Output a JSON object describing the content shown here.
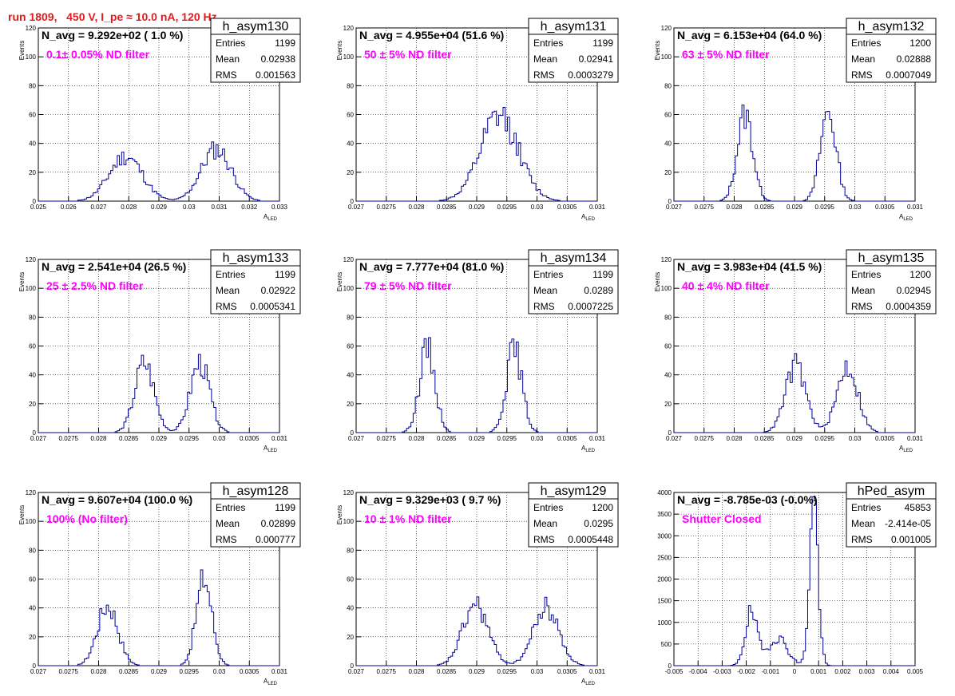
{
  "page_title": "run 1809,   450 V, I_pe ≈ 10.0 nA, 120 Hz",
  "chart_data": [
    {
      "type": "histogram",
      "name": "h_asym130",
      "n_avg_label": "N_avg = 9.292e+02 ( 1.0 %)",
      "filter_label": "0.1± 0.05% ND filter",
      "stats": [
        {
          "label": "Entries",
          "value": "1199"
        },
        {
          "label": "Mean",
          "value": "0.02938"
        },
        {
          "label": "RMS",
          "value": "0.001563"
        }
      ],
      "xlim": [
        0.025,
        0.033
      ],
      "ylim": [
        0,
        120
      ],
      "xticks": [
        0.025,
        0.026,
        0.027,
        0.028,
        0.029,
        0.03,
        0.031,
        0.032,
        0.033
      ],
      "xtick_labels": [
        "0.025",
        "0.026",
        "0.027",
        "0.028",
        "0.029",
        "0.03",
        "0.031",
        "0.032",
        "0.033"
      ],
      "yticks": [
        0,
        20,
        40,
        60,
        80,
        100,
        120
      ],
      "ytick_labels": [
        "0",
        "20",
        "40",
        "60",
        "80",
        "100",
        "120"
      ],
      "xlabel": "A",
      "xlabel_sub": "LED",
      "ylabel": "Events",
      "grid": true,
      "peaks": [
        {
          "center": 0.0279,
          "sigma": 0.00055,
          "height": 31
        },
        {
          "center": 0.0309,
          "sigma": 0.0005,
          "height": 36
        }
      ],
      "bins": 110,
      "seed": 11
    },
    {
      "type": "histogram",
      "name": "h_asym131",
      "n_avg_label": "N_avg = 4.955e+04 (51.6 %)",
      "filter_label": "50 ± 5% ND filter",
      "stats": [
        {
          "label": "Entries",
          "value": "1199"
        },
        {
          "label": "Mean",
          "value": "0.02941"
        },
        {
          "label": "RMS",
          "value": "0.0003279"
        }
      ],
      "xlim": [
        0.027,
        0.031
      ],
      "ylim": [
        0,
        120
      ],
      "xticks": [
        0.027,
        0.0275,
        0.028,
        0.0285,
        0.029,
        0.0295,
        0.03,
        0.0305,
        0.031
      ],
      "xtick_labels": [
        "0.027",
        "0.0275",
        "0.028",
        "0.0285",
        "0.029",
        "0.0295",
        "0.03",
        "0.0305",
        "0.031"
      ],
      "yticks": [
        0,
        20,
        40,
        60,
        80,
        100,
        120
      ],
      "ytick_labels": [
        "0",
        "20",
        "40",
        "60",
        "80",
        "100",
        "120"
      ],
      "xlabel": "A",
      "xlabel_sub": "LED",
      "ylabel": "Events",
      "grid": true,
      "peaks": [
        {
          "center": 0.02938,
          "sigma": 0.00032,
          "height": 58
        }
      ],
      "bins": 110,
      "seed": 12
    },
    {
      "type": "histogram",
      "name": "h_asym132",
      "n_avg_label": "N_avg = 6.153e+04 (64.0 %)",
      "filter_label": "63 ± 5% ND filter",
      "stats": [
        {
          "label": "Entries",
          "value": "1200"
        },
        {
          "label": "Mean",
          "value": "0.02888"
        },
        {
          "label": "RMS",
          "value": "0.0007049"
        }
      ],
      "xlim": [
        0.027,
        0.031
      ],
      "ylim": [
        0,
        120
      ],
      "xticks": [
        0.027,
        0.0275,
        0.028,
        0.0285,
        0.029,
        0.0295,
        0.03,
        0.0305,
        0.031
      ],
      "xtick_labels": [
        "0.027",
        "0.0275",
        "0.028",
        "0.0285",
        "0.029",
        "0.0295",
        "0.03",
        "0.0305",
        "0.031"
      ],
      "yticks": [
        0,
        20,
        40,
        60,
        80,
        100,
        120
      ],
      "ytick_labels": [
        "0",
        "20",
        "40",
        "60",
        "80",
        "100",
        "120"
      ],
      "xlabel": "A",
      "xlabel_sub": "LED",
      "ylabel": "Events",
      "grid": true,
      "peaks": [
        {
          "center": 0.02818,
          "sigma": 0.00013,
          "height": 60
        },
        {
          "center": 0.02956,
          "sigma": 0.00013,
          "height": 62
        }
      ],
      "bins": 110,
      "seed": 13
    },
    {
      "type": "histogram",
      "name": "h_asym133",
      "n_avg_label": "N_avg = 2.541e+04 (26.5 %)",
      "filter_label": "25 ± 2.5% ND filter",
      "stats": [
        {
          "label": "Entries",
          "value": "1199"
        },
        {
          "label": "Mean",
          "value": "0.02922"
        },
        {
          "label": "RMS",
          "value": "0.0005341"
        }
      ],
      "xlim": [
        0.027,
        0.031
      ],
      "ylim": [
        0,
        120
      ],
      "xticks": [
        0.027,
        0.0275,
        0.028,
        0.0285,
        0.029,
        0.0295,
        0.03,
        0.0305,
        0.031
      ],
      "xtick_labels": [
        "0.027",
        "0.0275",
        "0.028",
        "0.0285",
        "0.029",
        "0.0295",
        "0.03",
        "0.0305",
        "0.031"
      ],
      "yticks": [
        0,
        20,
        40,
        60,
        80,
        100,
        120
      ],
      "ytick_labels": [
        "0",
        "20",
        "40",
        "60",
        "80",
        "100",
        "120"
      ],
      "xlabel": "A",
      "xlabel_sub": "LED",
      "ylabel": "Events",
      "grid": true,
      "peaks": [
        {
          "center": 0.02876,
          "sigma": 0.00016,
          "height": 48
        },
        {
          "center": 0.02968,
          "sigma": 0.00016,
          "height": 48
        }
      ],
      "bins": 110,
      "seed": 14
    },
    {
      "type": "histogram",
      "name": "h_asym134",
      "n_avg_label": "N_avg = 7.777e+04 (81.0 %)",
      "filter_label": "79 ± 5% ND filter",
      "stats": [
        {
          "label": "Entries",
          "value": "1199"
        },
        {
          "label": "Mean",
          "value": "0.0289"
        },
        {
          "label": "RMS",
          "value": "0.0007225"
        }
      ],
      "xlim": [
        0.027,
        0.031
      ],
      "ylim": [
        0,
        120
      ],
      "xticks": [
        0.027,
        0.0275,
        0.028,
        0.0285,
        0.029,
        0.0295,
        0.03,
        0.0305,
        0.031
      ],
      "xtick_labels": [
        "0.027",
        "0.0275",
        "0.028",
        "0.0285",
        "0.029",
        "0.0295",
        "0.03",
        "0.0305",
        "0.031"
      ],
      "yticks": [
        0,
        20,
        40,
        60,
        80,
        100,
        120
      ],
      "ytick_labels": [
        "0",
        "20",
        "40",
        "60",
        "80",
        "100",
        "120"
      ],
      "xlabel": "A",
      "xlabel_sub": "LED",
      "ylabel": "Events",
      "grid": true,
      "peaks": [
        {
          "center": 0.02818,
          "sigma": 0.00013,
          "height": 58
        },
        {
          "center": 0.02962,
          "sigma": 0.00013,
          "height": 58
        }
      ],
      "bins": 110,
      "seed": 15
    },
    {
      "type": "histogram",
      "name": "h_asym135",
      "n_avg_label": "N_avg = 3.983e+04 (41.5 %)",
      "filter_label": "40 ± 4% ND filter",
      "stats": [
        {
          "label": "Entries",
          "value": "1200"
        },
        {
          "label": "Mean",
          "value": "0.02945"
        },
        {
          "label": "RMS",
          "value": "0.0004359"
        }
      ],
      "xlim": [
        0.027,
        0.031
      ],
      "ylim": [
        0,
        120
      ],
      "xticks": [
        0.027,
        0.0275,
        0.028,
        0.0285,
        0.029,
        0.0295,
        0.03,
        0.0305,
        0.031
      ],
      "xtick_labels": [
        "0.027",
        "0.0275",
        "0.028",
        "0.0285",
        "0.029",
        "0.0295",
        "0.03",
        "0.0305",
        "0.031"
      ],
      "yticks": [
        0,
        20,
        40,
        60,
        80,
        100,
        120
      ],
      "ytick_labels": [
        "0",
        "20",
        "40",
        "60",
        "80",
        "100",
        "120"
      ],
      "xlabel": "A",
      "xlabel_sub": "LED",
      "ylabel": "Events",
      "grid": true,
      "peaks": [
        {
          "center": 0.02902,
          "sigma": 0.00017,
          "height": 46
        },
        {
          "center": 0.02988,
          "sigma": 0.00017,
          "height": 46
        }
      ],
      "bins": 110,
      "seed": 16
    },
    {
      "type": "histogram",
      "name": "h_asym128",
      "n_avg_label": "N_avg = 9.607e+04 (100.0 %)",
      "filter_label": "100% (No filter)",
      "stats": [
        {
          "label": "Entries",
          "value": "1199"
        },
        {
          "label": "Mean",
          "value": "0.02899"
        },
        {
          "label": "RMS",
          "value": "0.000777"
        }
      ],
      "xlim": [
        0.027,
        0.031
      ],
      "ylim": [
        0,
        120
      ],
      "xticks": [
        0.027,
        0.0275,
        0.028,
        0.0285,
        0.029,
        0.0295,
        0.03,
        0.0305,
        0.031
      ],
      "xtick_labels": [
        "0.027",
        "0.0275",
        "0.028",
        "0.0285",
        "0.029",
        "0.0295",
        "0.03",
        "0.0305",
        "0.031"
      ],
      "yticks": [
        0,
        20,
        40,
        60,
        80,
        100,
        120
      ],
      "ytick_labels": [
        "0",
        "20",
        "40",
        "60",
        "80",
        "100",
        "120"
      ],
      "xlabel": "A",
      "xlabel_sub": "LED",
      "ylabel": "Events",
      "grid": true,
      "peaks": [
        {
          "center": 0.02815,
          "sigma": 0.00017,
          "height": 42
        },
        {
          "center": 0.02975,
          "sigma": 0.00013,
          "height": 60
        }
      ],
      "bins": 110,
      "seed": 17
    },
    {
      "type": "histogram",
      "name": "h_asym129",
      "n_avg_label": "N_avg = 9.329e+03 ( 9.7 %)",
      "filter_label": "10 ± 1% ND filter",
      "stats": [
        {
          "label": "Entries",
          "value": "1200"
        },
        {
          "label": "Mean",
          "value": "0.0295"
        },
        {
          "label": "RMS",
          "value": "0.0005448"
        }
      ],
      "xlim": [
        0.027,
        0.031
      ],
      "ylim": [
        0,
        120
      ],
      "xticks": [
        0.027,
        0.0275,
        0.028,
        0.0285,
        0.029,
        0.0295,
        0.03,
        0.0305,
        0.031
      ],
      "xtick_labels": [
        "0.027",
        "0.0275",
        "0.028",
        "0.0285",
        "0.029",
        "0.0295",
        "0.03",
        "0.0305",
        "0.031"
      ],
      "yticks": [
        0,
        20,
        40,
        60,
        80,
        100,
        120
      ],
      "ytick_labels": [
        "0",
        "20",
        "40",
        "60",
        "80",
        "100",
        "120"
      ],
      "xlabel": "A",
      "xlabel_sub": "LED",
      "ylabel": "Events",
      "grid": true,
      "peaks": [
        {
          "center": 0.02898,
          "sigma": 0.00021,
          "height": 42
        },
        {
          "center": 0.03015,
          "sigma": 0.00021,
          "height": 40
        }
      ],
      "bins": 110,
      "seed": 18
    },
    {
      "type": "histogram",
      "name": "hPed_asym",
      "n_avg_label": "N_avg = -8.785e-03 (-0.0%)",
      "filter_label": "Shutter Closed",
      "stats": [
        {
          "label": "Entries",
          "value": "45853"
        },
        {
          "label": "Mean",
          "value": "-2.414e-05"
        },
        {
          "label": "RMS",
          "value": "0.001005"
        }
      ],
      "xlim": [
        -0.005,
        0.005
      ],
      "ylim": [
        0,
        4000
      ],
      "xticks": [
        -0.005,
        -0.004,
        -0.003,
        -0.002,
        -0.001,
        0,
        0.001,
        0.002,
        0.003,
        0.004,
        0.005
      ],
      "xtick_labels": [
        "-0.005",
        "-0.004",
        "-0.003",
        "-0.002",
        "-0.001",
        "0",
        "0.001",
        "0.002",
        "0.003",
        "0.004",
        "0.005"
      ],
      "yticks": [
        0,
        500,
        1000,
        1500,
        2000,
        2500,
        3000,
        3500,
        4000
      ],
      "ytick_labels": [
        "0",
        "500",
        "1000",
        "1500",
        "2000",
        "2500",
        "3000",
        "3500",
        "4000"
      ],
      "xlabel": "",
      "xlabel_sub": "",
      "ylabel": "",
      "grid": true,
      "peaks": [
        {
          "center": -0.0018,
          "sigma": 0.00025,
          "height": 1200
        },
        {
          "center": -0.0007,
          "sigma": 0.0004,
          "height": 650
        },
        {
          "center": 0.0008,
          "sigma": 0.00018,
          "height": 3800
        }
      ],
      "bins": 110,
      "seed": 19
    }
  ]
}
